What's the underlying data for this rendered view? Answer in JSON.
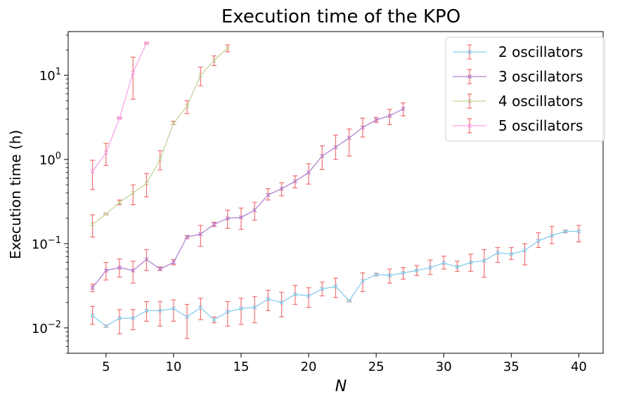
{
  "chart_data": {
    "type": "line",
    "title": "Execution time of the KPO",
    "xlabel": "N",
    "ylabel": "Execution time (h)",
    "xlim": [
      2.2,
      41.8
    ],
    "ylim": [
      0.005,
      33
    ],
    "yscale": "log",
    "xticks": [
      5,
      10,
      15,
      20,
      25,
      30,
      35,
      40
    ],
    "xtick_labels": [
      "5",
      "10",
      "15",
      "20",
      "25",
      "30",
      "35",
      "40"
    ],
    "yticks": [
      0.01,
      0.1,
      1,
      10
    ],
    "ytick_labels": [
      {
        "base": "10",
        "exp": "−2"
      },
      {
        "base": "10",
        "exp": "−1"
      },
      {
        "base": "10",
        "exp": "0"
      },
      {
        "base": "10",
        "exp": "1"
      }
    ],
    "legend_position": "top-right",
    "errorbar_color": "#f07070",
    "series": [
      {
        "name": "2 oscillators",
        "color": "#87ceeb",
        "x": [
          4,
          5,
          6,
          7,
          8,
          9,
          10,
          11,
          12,
          13,
          14,
          15,
          16,
          17,
          18,
          19,
          20,
          21,
          22,
          23,
          24,
          25,
          26,
          27,
          28,
          29,
          30,
          31,
          32,
          33,
          34,
          35,
          36,
          37,
          38,
          39,
          40
        ],
        "y": [
          0.014,
          0.0105,
          0.013,
          0.013,
          0.016,
          0.016,
          0.017,
          0.0135,
          0.0175,
          0.0125,
          0.0155,
          0.017,
          0.0175,
          0.022,
          0.02,
          0.025,
          0.024,
          0.029,
          0.031,
          0.021,
          0.036,
          0.043,
          0.042,
          0.045,
          0.048,
          0.052,
          0.059,
          0.053,
          0.06,
          0.063,
          0.078,
          0.075,
          0.083,
          0.108,
          0.125,
          0.14,
          0.14
        ],
        "err_low": [
          0.011,
          0.0102,
          0.0085,
          0.0095,
          0.012,
          0.0105,
          0.012,
          0.0075,
          0.0125,
          0.0115,
          0.0105,
          0.011,
          0.0115,
          0.016,
          0.0135,
          0.019,
          0.0175,
          0.024,
          0.023,
          0.0205,
          0.027,
          0.0415,
          0.034,
          0.038,
          0.042,
          0.043,
          0.05,
          0.047,
          0.047,
          0.04,
          0.06,
          0.065,
          0.056,
          0.09,
          0.1,
          0.135,
          0.105
        ],
        "err_high": [
          0.018,
          0.0108,
          0.0165,
          0.0165,
          0.0205,
          0.0205,
          0.0215,
          0.019,
          0.0225,
          0.0135,
          0.0205,
          0.0225,
          0.0235,
          0.028,
          0.0265,
          0.032,
          0.03,
          0.035,
          0.039,
          0.0215,
          0.045,
          0.0445,
          0.05,
          0.052,
          0.055,
          0.064,
          0.071,
          0.062,
          0.075,
          0.085,
          0.09,
          0.09,
          0.1,
          0.135,
          0.16,
          0.145,
          0.165
        ]
      },
      {
        "name": "3 oscillators",
        "color": "#b580d1",
        "x": [
          4,
          5,
          6,
          7,
          8,
          9,
          10,
          11,
          12,
          13,
          14,
          15,
          16,
          17,
          18,
          19,
          20,
          21,
          22,
          23,
          24,
          25,
          26,
          27
        ],
        "y": [
          0.03,
          0.048,
          0.052,
          0.048,
          0.065,
          0.05,
          0.06,
          0.12,
          0.13,
          0.17,
          0.2,
          0.205,
          0.25,
          0.38,
          0.45,
          0.55,
          0.7,
          1.1,
          1.4,
          1.8,
          2.4,
          2.95,
          3.3,
          4.0
        ],
        "err_low": [
          0.027,
          0.037,
          0.04,
          0.034,
          0.048,
          0.048,
          0.056,
          0.115,
          0.093,
          0.16,
          0.152,
          0.148,
          0.19,
          0.33,
          0.37,
          0.46,
          0.51,
          0.76,
          1.0,
          1.1,
          1.85,
          2.75,
          2.6,
          3.3
        ],
        "err_high": [
          0.033,
          0.06,
          0.066,
          0.062,
          0.085,
          0.053,
          0.065,
          0.125,
          0.165,
          0.18,
          0.25,
          0.265,
          0.31,
          0.45,
          0.53,
          0.64,
          0.89,
          1.45,
          1.95,
          2.3,
          3.1,
          3.15,
          3.95,
          4.7
        ]
      },
      {
        "name": "4 oscillators",
        "color": "#c2d49a",
        "x": [
          4,
          5,
          6,
          7,
          8,
          9,
          10,
          11,
          12,
          13,
          14
        ],
        "y": [
          0.17,
          0.225,
          0.31,
          0.4,
          0.52,
          1.0,
          2.7,
          4.3,
          10.0,
          15.0,
          21.0
        ],
        "err_low": [
          0.12,
          0.22,
          0.29,
          0.29,
          0.36,
          0.75,
          2.6,
          3.5,
          7.5,
          13.0,
          19.0
        ],
        "err_high": [
          0.22,
          0.23,
          0.33,
          0.5,
          0.68,
          1.27,
          2.85,
          5.0,
          12.5,
          17.0,
          23.0
        ]
      },
      {
        "name": "5 oscillators",
        "color": "#f9a3ea",
        "x": [
          4,
          5,
          6,
          7,
          8
        ],
        "y": [
          0.72,
          1.2,
          3.1,
          10.8,
          24.0
        ],
        "err_low": [
          0.44,
          0.85,
          3.05,
          5.2,
          23.5
        ],
        "err_high": [
          0.98,
          1.55,
          3.15,
          16.4,
          24.5
        ]
      }
    ]
  }
}
